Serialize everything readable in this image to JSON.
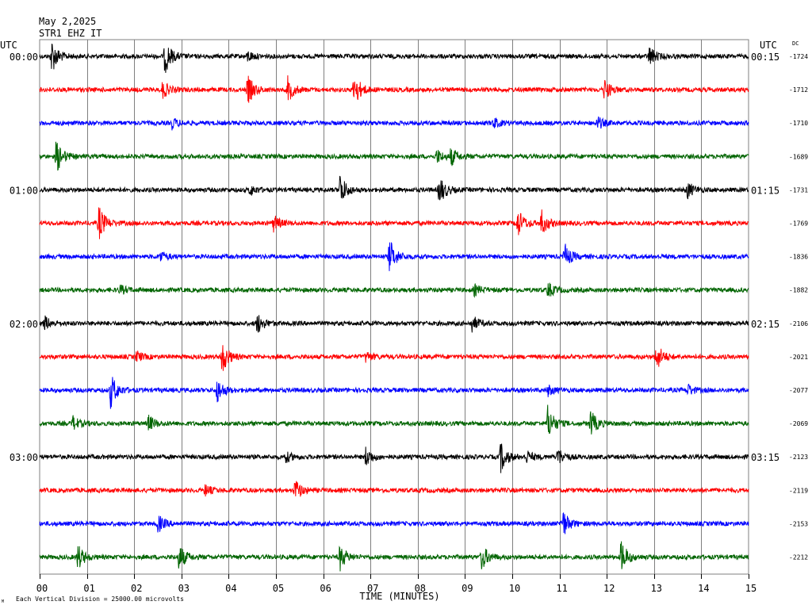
{
  "header": {
    "date": "May 2,2025",
    "station": "STR1 EHZ IT"
  },
  "labels": {
    "utc_left": "UTC",
    "utc_right": "UTC",
    "dc": "DC",
    "x_axis_title": "TIME (MINUTES)",
    "footnote": "Each Vertical Division = 25000.00 microvolts",
    "corner_mark": "M"
  },
  "colors": {
    "background": "#ffffff",
    "grid": "#7f7f7f",
    "trace_cycle": [
      "#000000",
      "#ff0000",
      "#0000ff",
      "#006400"
    ]
  },
  "chart_data": {
    "type": "line",
    "subtype": "helicorder",
    "x_range": [
      0,
      15
    ],
    "x_ticks": [
      "00",
      "01",
      "02",
      "03",
      "04",
      "05",
      "06",
      "07",
      "08",
      "09",
      "10",
      "11",
      "12",
      "13",
      "14",
      "15"
    ],
    "minutes_per_line": 15,
    "left_time_labels": [
      {
        "row": 0,
        "text": "00:00"
      },
      {
        "row": 4,
        "text": "01:00"
      },
      {
        "row": 8,
        "text": "02:00"
      },
      {
        "row": 12,
        "text": "03:00"
      }
    ],
    "right_time_labels": [
      {
        "row": 0,
        "text": "00:15"
      },
      {
        "row": 4,
        "text": "01:15"
      },
      {
        "row": 8,
        "text": "02:15"
      },
      {
        "row": 12,
        "text": "03:15"
      }
    ],
    "dc_offsets": [
      "-1724",
      "-1712",
      "-1710",
      "-1689",
      "-1731",
      "-1769",
      "-1836",
      "-1882",
      "-2106",
      "-2021",
      "-2077",
      "-2069",
      "-2123",
      "-2119",
      "-2153",
      "-2212"
    ],
    "events": [
      [
        [
          0.25,
          1.0
        ],
        [
          2.65,
          1.0
        ],
        [
          4.4,
          0.3
        ],
        [
          12.9,
          0.55
        ]
      ],
      [
        [
          2.6,
          0.5
        ],
        [
          4.4,
          0.85
        ],
        [
          5.25,
          0.7
        ],
        [
          6.65,
          1.0
        ],
        [
          11.95,
          0.6
        ]
      ],
      [
        [
          2.8,
          0.3
        ],
        [
          9.6,
          0.3
        ],
        [
          11.8,
          0.35
        ]
      ],
      [
        [
          0.35,
          1.0
        ],
        [
          8.4,
          0.4
        ],
        [
          8.7,
          0.5
        ]
      ],
      [
        [
          4.45,
          0.3
        ],
        [
          6.35,
          0.95
        ],
        [
          8.45,
          0.85
        ],
        [
          13.7,
          0.5
        ]
      ],
      [
        [
          1.25,
          1.0
        ],
        [
          4.95,
          0.45
        ],
        [
          10.1,
          0.9
        ],
        [
          10.6,
          0.8
        ]
      ],
      [
        [
          2.55,
          0.3
        ],
        [
          7.4,
          1.0
        ],
        [
          11.1,
          0.75
        ]
      ],
      [
        [
          1.7,
          0.25
        ],
        [
          9.2,
          0.3
        ],
        [
          10.75,
          0.45
        ]
      ],
      [
        [
          0.1,
          0.4
        ],
        [
          4.6,
          0.6
        ],
        [
          9.15,
          0.45
        ]
      ],
      [
        [
          2.05,
          0.3
        ],
        [
          3.85,
          1.0
        ],
        [
          6.9,
          0.3
        ],
        [
          13.05,
          0.8
        ]
      ],
      [
        [
          1.5,
          1.0
        ],
        [
          3.75,
          0.7
        ],
        [
          10.75,
          0.3
        ],
        [
          13.7,
          0.35
        ]
      ],
      [
        [
          0.7,
          0.4
        ],
        [
          2.3,
          0.45
        ],
        [
          10.75,
          1.0
        ],
        [
          11.65,
          0.8
        ]
      ],
      [
        [
          5.2,
          0.3
        ],
        [
          6.9,
          0.55
        ],
        [
          9.75,
          0.9
        ],
        [
          10.3,
          0.35
        ],
        [
          10.95,
          0.55
        ]
      ],
      [
        [
          3.5,
          0.3
        ],
        [
          5.4,
          0.65
        ]
      ],
      [
        [
          2.5,
          0.5
        ],
        [
          11.05,
          0.9
        ]
      ],
      [
        [
          0.8,
          0.75
        ],
        [
          2.95,
          0.75
        ],
        [
          6.35,
          0.75
        ],
        [
          9.35,
          0.75
        ],
        [
          12.3,
          0.95
        ]
      ]
    ]
  }
}
